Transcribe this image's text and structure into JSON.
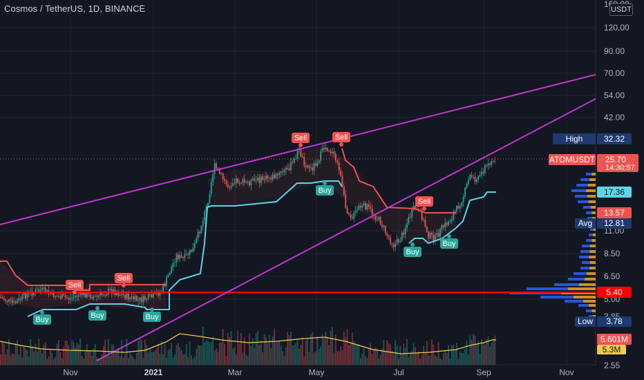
{
  "title": "Cosmos / TetherUS, 1D, BINANCE",
  "currency_button": "USDT",
  "axis": {
    "price_ticks": [
      "160.00",
      "120.00",
      "90.00",
      "70.00",
      "54.00",
      "42.00",
      "11.00",
      "8.50",
      "6.50",
      "5.00",
      "3.85",
      "2.55"
    ],
    "time_ticks": [
      "Nov",
      "2021",
      "Mar",
      "May",
      "Jul",
      "Sep",
      "Nov"
    ]
  },
  "labels": {
    "high_label": "High",
    "high_value": "32.32",
    "symbol": "ATOMUSDT",
    "last_price": "25.70",
    "countdown": "14:30:57",
    "support_value": "17.36",
    "resistance_value": "13.57",
    "avg_label": "Avg",
    "avg_value": "12.81",
    "level_value": "5.40",
    "low_label": "Low",
    "low_value": "3.78",
    "volume_value": "5.601M",
    "volume_ma_value": "5.3M"
  },
  "signals": {
    "buy_text": "Buy",
    "sell_text": "Sell"
  },
  "colors": {
    "bg": "#131722",
    "up": "#26a69a",
    "down": "#ef5350",
    "trendline": "#c435d4",
    "support_line": "#5fd4e6",
    "resistance_line": "#ef5350",
    "level_line": "#ff0000",
    "volume_ma": "#f2c94c",
    "profile_blue": "#2962ff",
    "profile_orange": "#f5a623"
  }
}
